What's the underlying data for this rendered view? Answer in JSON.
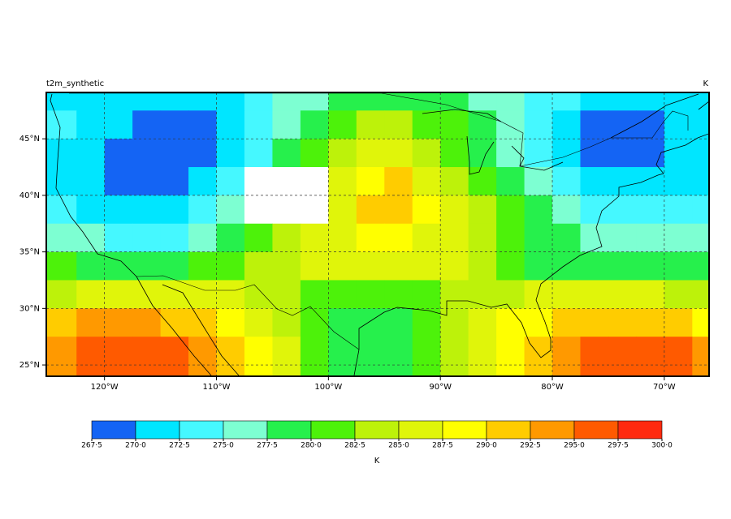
{
  "map": {
    "type": "gridded-field",
    "title_left": "t2m_synthetic",
    "units": "K",
    "xlim": [
      -125.2,
      -66
    ],
    "ylim": [
      24,
      49.1
    ],
    "lons": [
      -123.75,
      -121.25,
      -118.75,
      -116.25,
      -113.75,
      -111.25,
      -108.75,
      -106.25,
      -103.75,
      -101.25,
      -98.75,
      -96.25,
      -93.75,
      -91.25,
      -88.75,
      -86.25,
      -83.75,
      -81.25,
      -78.75,
      -76.25,
      -73.75,
      -71.25,
      -68.75,
      -66.25
    ],
    "lats": [
      48.75,
      46.25,
      43.75,
      41.25,
      38.75,
      36.25,
      33.75,
      31.25,
      28.75,
      26.25
    ],
    "values": [
      [
        271,
        271,
        271,
        271,
        271,
        271,
        271,
        274,
        276,
        276,
        279,
        279,
        279,
        279,
        279,
        276,
        276,
        274,
        274,
        271,
        271,
        271,
        271,
        271
      ],
      [
        273,
        271,
        271,
        269,
        269,
        269,
        271,
        274,
        276,
        279,
        281,
        284,
        284,
        281,
        281,
        279,
        276,
        274,
        271,
        269,
        269,
        269,
        271,
        271
      ],
      [
        271,
        271,
        269,
        269,
        269,
        269,
        271,
        274,
        279,
        281,
        284,
        286,
        286,
        284,
        281,
        279,
        276,
        274,
        271,
        269,
        269,
        269,
        271,
        271
      ],
      [
        271,
        271,
        269,
        269,
        269,
        271,
        274,
        null,
        null,
        null,
        286,
        289,
        291,
        286,
        284,
        281,
        279,
        276,
        274,
        271,
        271,
        271,
        271,
        271
      ],
      [
        274,
        271,
        271,
        271,
        271,
        274,
        276,
        null,
        null,
        null,
        286,
        291,
        291,
        289,
        286,
        284,
        281,
        279,
        276,
        274,
        274,
        274,
        274,
        274
      ],
      [
        276,
        276,
        274,
        274,
        274,
        276,
        279,
        281,
        284,
        286,
        286,
        289,
        289,
        286,
        286,
        284,
        281,
        279,
        279,
        276,
        276,
        276,
        276,
        276
      ],
      [
        281,
        279,
        279,
        279,
        279,
        281,
        281,
        284,
        284,
        286,
        286,
        286,
        286,
        286,
        286,
        284,
        281,
        279,
        279,
        279,
        279,
        279,
        279,
        279
      ],
      [
        284,
        286,
        286,
        286,
        286,
        286,
        286,
        284,
        284,
        281,
        281,
        281,
        281,
        281,
        284,
        284,
        284,
        286,
        286,
        286,
        286,
        286,
        284,
        284
      ],
      [
        291,
        294,
        294,
        294,
        291,
        291,
        289,
        286,
        284,
        281,
        279,
        279,
        279,
        281,
        284,
        286,
        289,
        289,
        291,
        291,
        291,
        291,
        291,
        289
      ],
      [
        294,
        296,
        296,
        296,
        296,
        294,
        291,
        289,
        286,
        281,
        279,
        279,
        279,
        281,
        284,
        286,
        289,
        291,
        294,
        296,
        296,
        296,
        296,
        294
      ]
    ],
    "xticks": [
      {
        "value": -120,
        "label": "120°W"
      },
      {
        "value": -110,
        "label": "110°W"
      },
      {
        "value": -100,
        "label": "100°W"
      },
      {
        "value": -90,
        "label": "90°W"
      },
      {
        "value": -80,
        "label": "80°W"
      },
      {
        "value": -70,
        "label": "70°W"
      }
    ],
    "yticks": [
      {
        "value": 25,
        "label": "25°N"
      },
      {
        "value": 30,
        "label": "30°N"
      },
      {
        "value": 35,
        "label": "35°N"
      },
      {
        "value": 40,
        "label": "40°N"
      },
      {
        "value": 45,
        "label": "45°N"
      }
    ],
    "grid": true,
    "colorbar": {
      "levels": [
        267.5,
        270.0,
        272.5,
        275.0,
        277.5,
        280.0,
        282.5,
        285.0,
        287.5,
        290.0,
        292.5,
        295.0,
        297.5,
        300.0
      ],
      "labels": [
        "267·5",
        "270·0",
        "272·5",
        "275·0",
        "277·5",
        "280·0",
        "282·5",
        "285·0",
        "287·5",
        "290·0",
        "292·5",
        "295·0",
        "297·5",
        "300·0"
      ],
      "colors": [
        "#1464f4",
        "#00e6ff",
        "#45f8ff",
        "#7dffd2",
        "#26f04c",
        "#4df20a",
        "#bdf20a",
        "#e0f50a",
        "#ffff00",
        "#ffcc00",
        "#ff9900",
        "#ff5a00",
        "#ff2a0f"
      ],
      "label": "K"
    }
  }
}
